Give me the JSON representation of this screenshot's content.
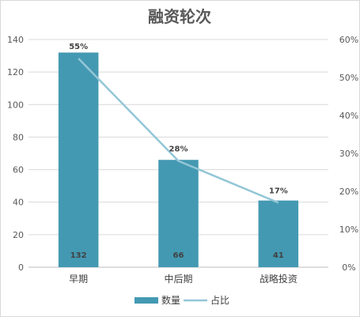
{
  "chart_data": {
    "type": "bar",
    "title": "融资轮次",
    "categories": [
      "早期",
      "中后期",
      "战略投资"
    ],
    "series": [
      {
        "name": "数量",
        "type": "bar",
        "axis": "left",
        "values": [
          132,
          66,
          41
        ],
        "labels": [
          "132",
          "66",
          "41"
        ],
        "color": "#4499b2"
      },
      {
        "name": "占比",
        "type": "line",
        "axis": "right",
        "values": [
          0.55,
          0.28,
          0.17
        ],
        "labels": [
          "55%",
          "28%",
          "17%"
        ],
        "color": "#93c6d7"
      }
    ],
    "y_left": {
      "ylim": [
        0,
        140
      ],
      "ticks": [
        "0",
        "20",
        "40",
        "60",
        "80",
        "100",
        "120",
        "140"
      ]
    },
    "y_right": {
      "ylim": [
        0,
        0.6
      ],
      "ticks": [
        "0%",
        "10%",
        "20%",
        "30%",
        "40%",
        "50%",
        "60%"
      ]
    },
    "legend": "bottom",
    "grid": true
  }
}
